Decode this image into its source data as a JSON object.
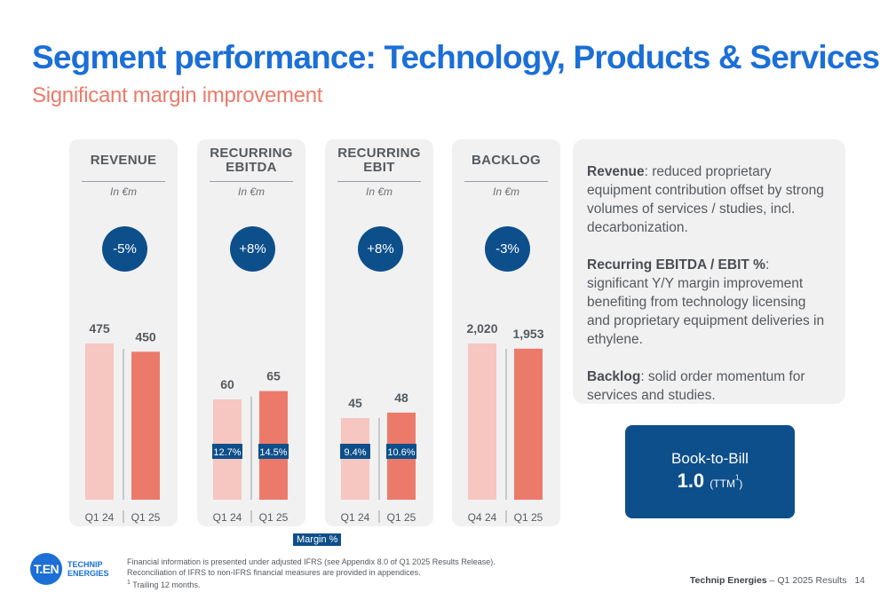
{
  "header": {
    "title": "Segment performance: Technology, Products & Services",
    "subtitle": "Significant margin improvement"
  },
  "colors": {
    "title": "#1b6fd6",
    "subtitle": "#ec7a6a",
    "prior_bar": "#f6c6c1",
    "current_bar": "#ec7a6a",
    "badge": "#0d4f8b",
    "panel_bg": "#f1f1f2"
  },
  "chart_data": [
    {
      "type": "bar",
      "title": "REVENUE",
      "unit": "In €m",
      "change": "-5%",
      "categories": [
        "Q1 24",
        "Q1 25"
      ],
      "values": [
        475,
        450
      ],
      "value_labels": [
        "475",
        "450"
      ],
      "margins": null
    },
    {
      "type": "bar",
      "title": "RECURRING\nEBITDA",
      "unit": "In €m",
      "change": "+8%",
      "categories": [
        "Q1 24",
        "Q1 25"
      ],
      "values": [
        60,
        65
      ],
      "value_labels": [
        "60",
        "65"
      ],
      "margins": [
        "12.7%",
        "14.5%"
      ]
    },
    {
      "type": "bar",
      "title": "RECURRING\nEBIT",
      "unit": "In €m",
      "change": "+8%",
      "categories": [
        "Q1 24",
        "Q1 25"
      ],
      "values": [
        45,
        48
      ],
      "value_labels": [
        "45",
        "48"
      ],
      "margins": [
        "9.4%",
        "10.6%"
      ]
    },
    {
      "type": "bar",
      "title": "BACKLOG",
      "unit": "In €m",
      "change": "-3%",
      "categories": [
        "Q4 24",
        "Q1 25"
      ],
      "values": [
        2020,
        1953
      ],
      "value_labels": [
        "2,020",
        "1,953"
      ],
      "margins": null
    }
  ],
  "commentary": [
    {
      "label": "Revenue",
      "text": ": reduced proprietary equipment contribution offset by strong volumes of services / studies, incl. decarbonization."
    },
    {
      "label": "Recurring EBITDA / EBIT %",
      "text": ": significant Y/Y margin improvement benefiting from technology licensing and proprietary equipment deliveries in ethylene."
    },
    {
      "label": "Backlog",
      "text": ": solid order momentum for services and studies."
    }
  ],
  "book_to_bill": {
    "label": "Book-to-Bill",
    "value": "1.0",
    "suffix": "(TTM",
    "sup": "1",
    "suffix_end": ")"
  },
  "legend": {
    "margin_label": "Margin %"
  },
  "logo": {
    "mark": "T.EN",
    "name": "TECHNIP\nENERGIES"
  },
  "footnotes": {
    "line1": "Financial information is presented under adjusted IFRS (see Appendix 8.0 of Q1 2025 Results Release).",
    "line2": "Reconciliation of IFRS to non-IFRS financial measures are provided in appendices.",
    "line3_sup": "1",
    "line3": " Trailing 12 months."
  },
  "footer": {
    "company": "Technip Energies",
    "separator": " – ",
    "report": "Q1 2025 Results",
    "page": "14"
  }
}
